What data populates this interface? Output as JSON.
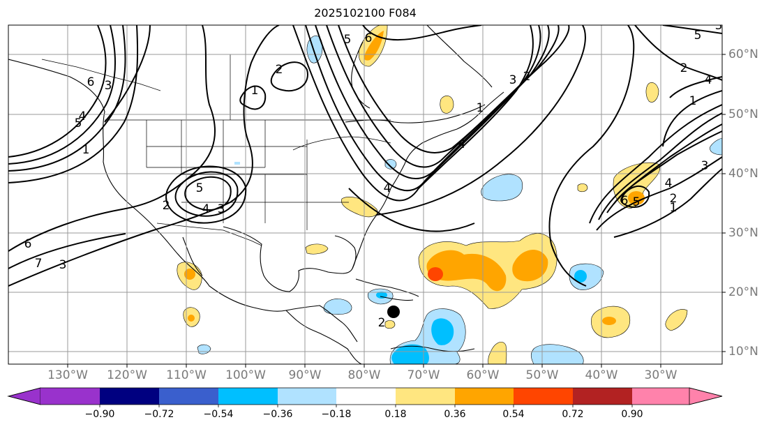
{
  "title": "2025102100 F084",
  "lon_labels": [
    "130°W",
    "120°W",
    "110°W",
    "100°W",
    "90°W",
    "80°W",
    "70°W",
    "60°W",
    "50°W",
    "40°W",
    "30°W"
  ],
  "lat_labels": [
    "60°N",
    "50°N",
    "40°N",
    "30°N",
    "20°N",
    "10°N"
  ],
  "colorbar": {
    "tick_labels": [
      "−0.90",
      "−0.72",
      "−0.54",
      "−0.36",
      "−0.18",
      "0.18",
      "0.36",
      "0.54",
      "0.72",
      "0.90"
    ],
    "colors": [
      "#9932cc",
      "#000080",
      "#3a5fcd",
      "#00bfff",
      "#b0e2ff",
      "#ffffff",
      "#ffe680",
      "#ffa500",
      "#ff4500",
      "#b22222",
      "#ff82ab"
    ]
  },
  "contour_labels": [
    "6",
    "3",
    "5",
    "4",
    "1",
    "2",
    "3",
    "4",
    "5",
    "6",
    "7",
    "3",
    "2",
    "1",
    "5",
    "6",
    "4",
    "3",
    "2",
    "1",
    "4",
    "2",
    "5",
    "1",
    "4",
    "6",
    "5",
    "2",
    "3",
    "4",
    "1",
    "2",
    "3"
  ],
  "marker": "black-dot"
}
